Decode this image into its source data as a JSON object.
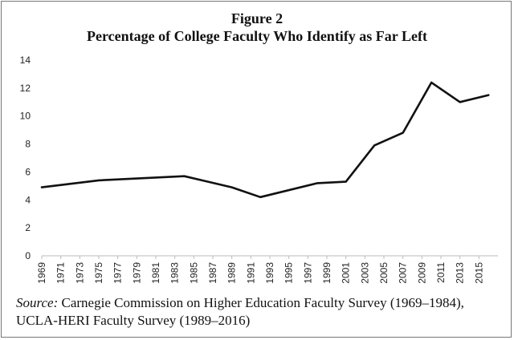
{
  "figure": {
    "title_line1": "Figure 2",
    "title_line2": "Percentage of College Faculty Who Identify as Far Left"
  },
  "source": {
    "label": "Source:",
    "text_line1": " Carnegie Commission on Higher Education Faculty Survey (1969–1984),",
    "text_line2": "UCLA-HERI Faculty Survey (1989–2016)"
  },
  "colors": {
    "line": "#111111",
    "axis": "#bbbbbb"
  },
  "chart_data": {
    "type": "line",
    "title": "Percentage of College Faculty Who Identify as Far Left",
    "xlabel": "",
    "ylabel": "",
    "ylim": [
      0,
      14
    ],
    "yticks": [
      0,
      2,
      4,
      6,
      8,
      10,
      12,
      14
    ],
    "xlim": [
      1969,
      2017
    ],
    "xticks": [
      1969,
      1971,
      1973,
      1975,
      1977,
      1979,
      1981,
      1983,
      1985,
      1987,
      1989,
      1991,
      1993,
      1995,
      1997,
      1999,
      2001,
      2003,
      2005,
      2007,
      2009,
      2011,
      2013,
      2015
    ],
    "grid": false,
    "legend": "none",
    "series": [
      {
        "x": [
          1969,
          1975,
          1984,
          1989,
          1992,
          1998,
          2001,
          2004,
          2007,
          2010,
          2013,
          2016
        ],
        "values": [
          4.9,
          5.4,
          5.7,
          4.9,
          4.2,
          5.2,
          5.3,
          7.9,
          8.8,
          12.4,
          11.0,
          11.5
        ]
      }
    ]
  }
}
